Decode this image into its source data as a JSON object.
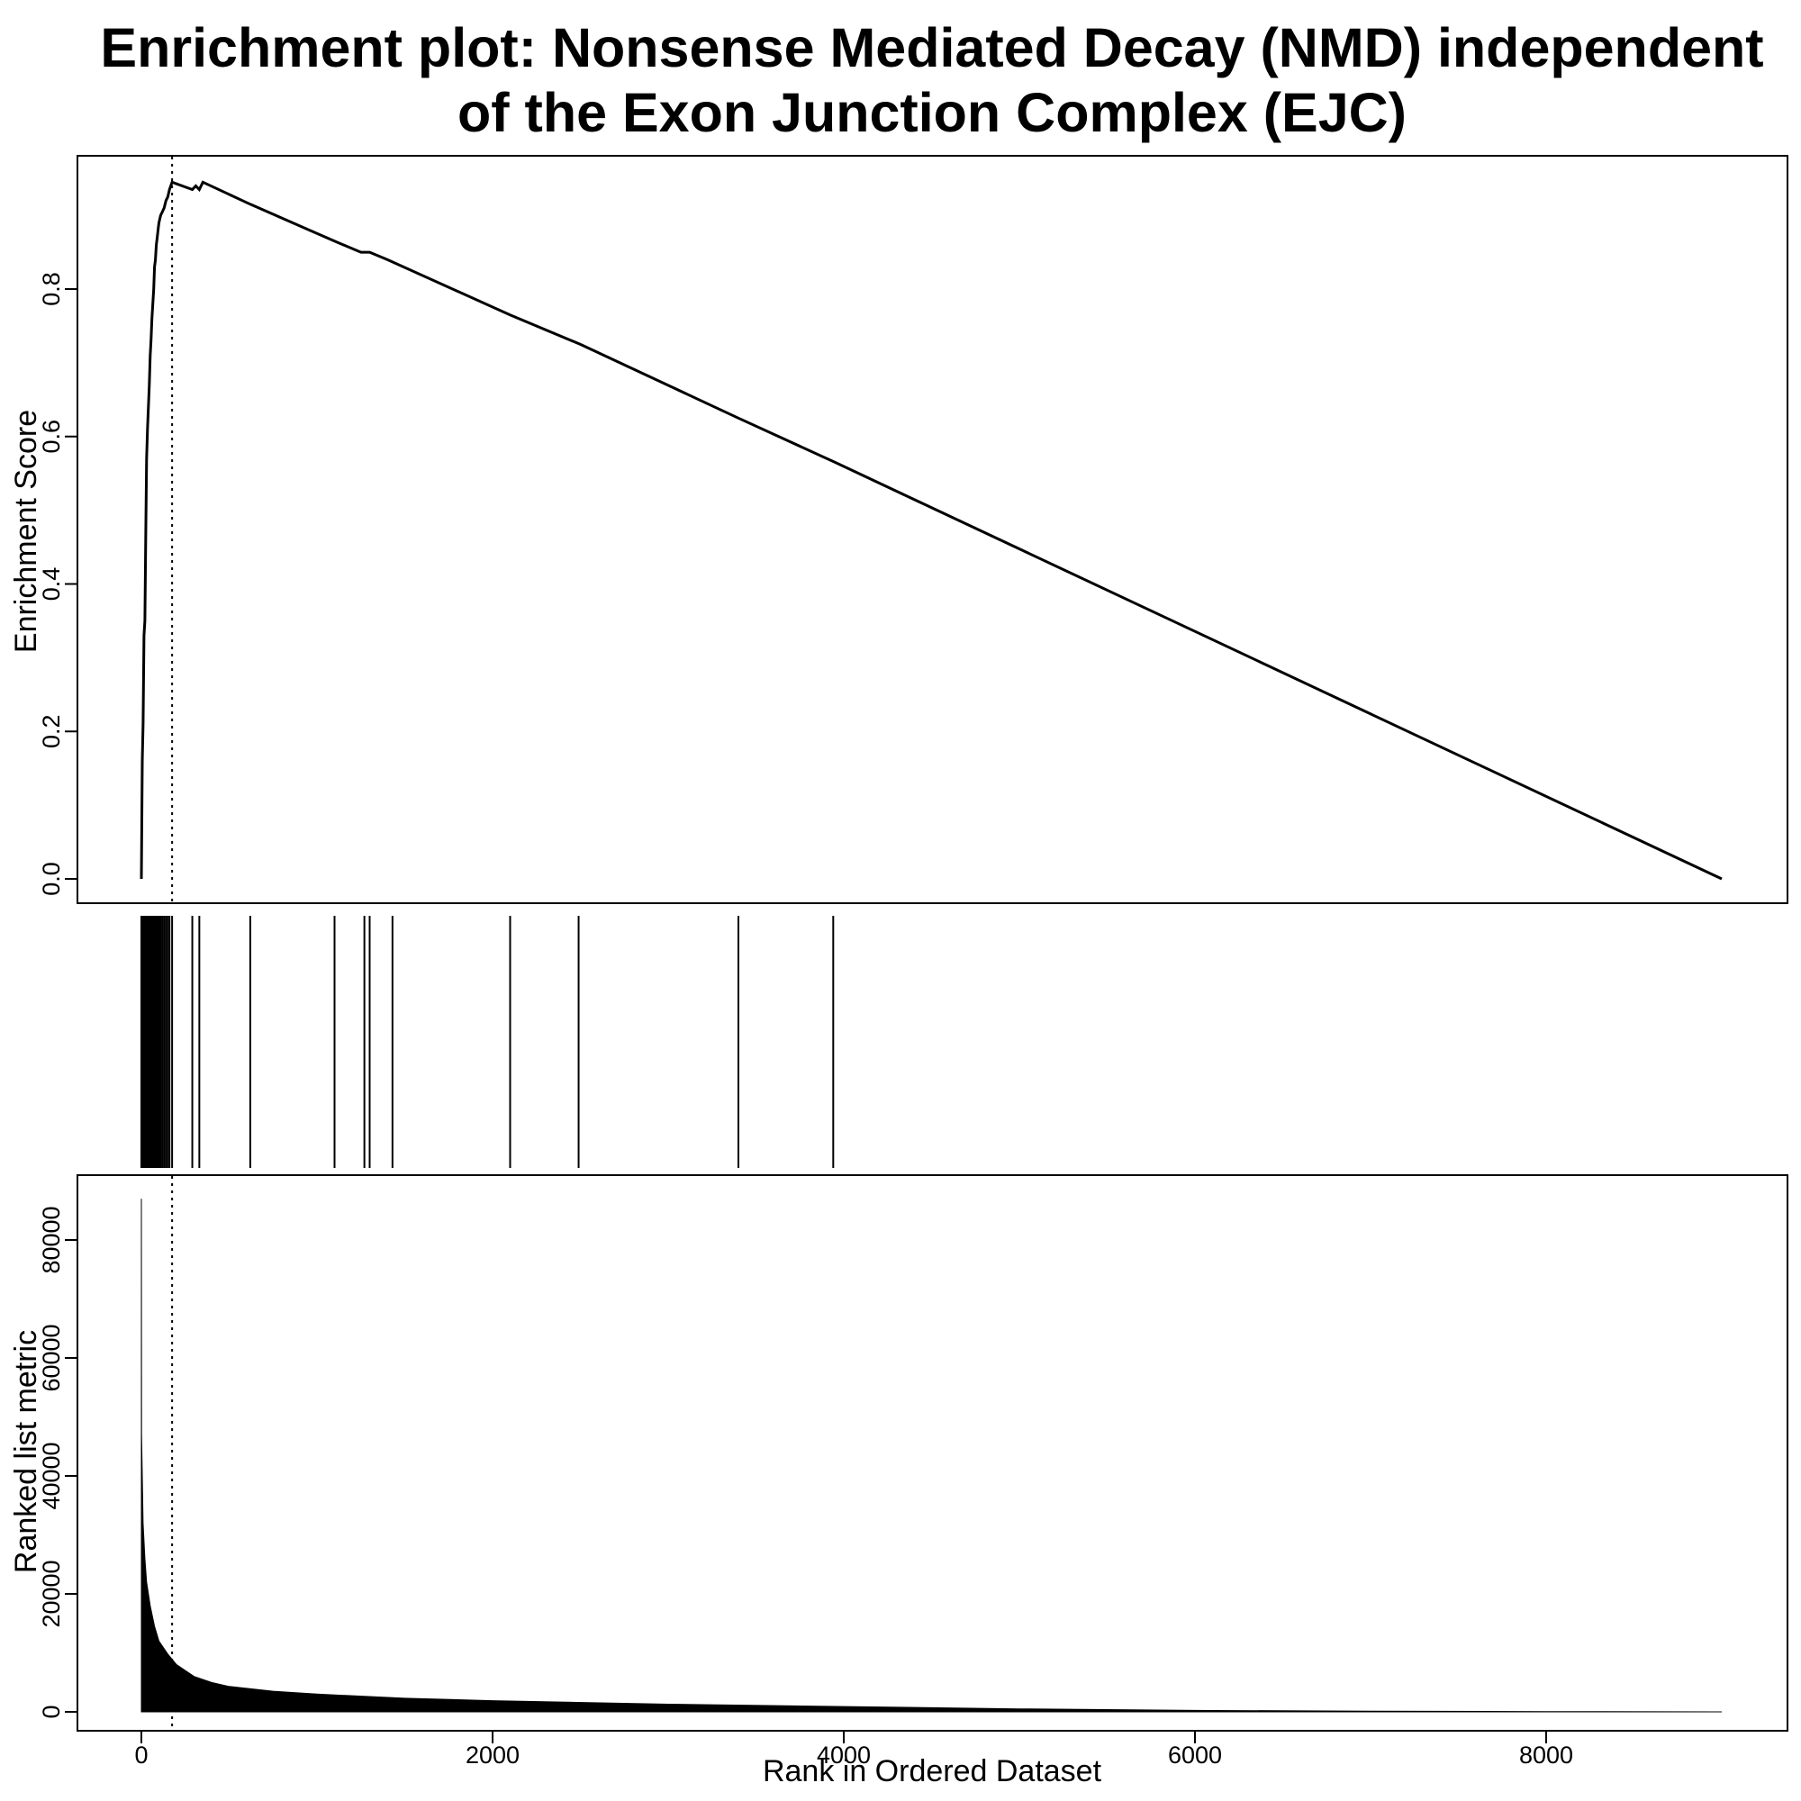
{
  "title_lines": [
    "Enrichment plot: Nonsense Mediated Decay (NMD) independent",
    "of the Exon Junction Complex (EJC)"
  ],
  "chart_data": [
    {
      "type": "line",
      "panel": "enrichment-score",
      "ylabel": "Enrichment Score",
      "xlim": [
        0,
        9000
      ],
      "ylim": [
        0,
        0.95
      ],
      "yticks": [
        "0.0",
        "0.2",
        "0.4",
        "0.6",
        "0.8"
      ],
      "ytick_values": [
        0,
        0.2,
        0.4,
        0.6,
        0.8
      ],
      "peak_rank": 175,
      "peak_marker": "dotted vertical line at peak rank",
      "x": [
        0,
        5,
        10,
        15,
        20,
        25,
        30,
        35,
        40,
        45,
        50,
        55,
        60,
        65,
        70,
        75,
        80,
        85,
        90,
        95,
        100,
        110,
        120,
        130,
        140,
        150,
        160,
        175,
        290,
        310,
        330,
        350,
        620,
        1100,
        1250,
        1300,
        1400,
        2100,
        2500,
        3400,
        3950,
        9000
      ],
      "y": [
        0.0,
        0.16,
        0.21,
        0.33,
        0.35,
        0.47,
        0.57,
        0.61,
        0.64,
        0.67,
        0.71,
        0.73,
        0.76,
        0.78,
        0.8,
        0.83,
        0.84,
        0.86,
        0.87,
        0.88,
        0.89,
        0.9,
        0.905,
        0.91,
        0.92,
        0.925,
        0.935,
        0.945,
        0.935,
        0.94,
        0.935,
        0.945,
        0.915,
        0.865,
        0.85,
        0.85,
        0.84,
        0.765,
        0.725,
        0.625,
        0.565,
        0.0
      ]
    },
    {
      "type": "barcode",
      "panel": "hit-positions",
      "hits": [
        0,
        5,
        10,
        15,
        20,
        25,
        30,
        35,
        40,
        45,
        50,
        55,
        60,
        65,
        70,
        75,
        80,
        85,
        90,
        95,
        100,
        110,
        120,
        130,
        140,
        150,
        160,
        175,
        290,
        330,
        620,
        1100,
        1270,
        1300,
        1430,
        2100,
        2490,
        3400,
        3940
      ]
    },
    {
      "type": "area",
      "panel": "ranked-list-metric",
      "ylabel": "Ranked list metric",
      "xlabel": "Rank in Ordered Dataset",
      "xlim": [
        0,
        9000
      ],
      "xticks": [
        "0",
        "2000",
        "4000",
        "6000",
        "8000"
      ],
      "xtick_values": [
        0,
        2000,
        4000,
        6000,
        8000
      ],
      "yticks": [
        "0",
        "20000",
        "40000",
        "60000",
        "80000"
      ],
      "ytick_values": [
        0,
        20000,
        40000,
        60000,
        80000
      ],
      "ylim": [
        0,
        88000
      ],
      "x": [
        0,
        1,
        5,
        10,
        20,
        30,
        50,
        75,
        100,
        150,
        200,
        300,
        400,
        500,
        750,
        1000,
        1500,
        2000,
        3000,
        4000,
        5000,
        6000,
        7000,
        8000,
        9000
      ],
      "y": [
        87000,
        47000,
        40000,
        32000,
        26000,
        22000,
        18000,
        14500,
        12000,
        9800,
        8000,
        6000,
        5000,
        4300,
        3500,
        3000,
        2300,
        1900,
        1300,
        900,
        500,
        250,
        120,
        50,
        0
      ]
    }
  ]
}
